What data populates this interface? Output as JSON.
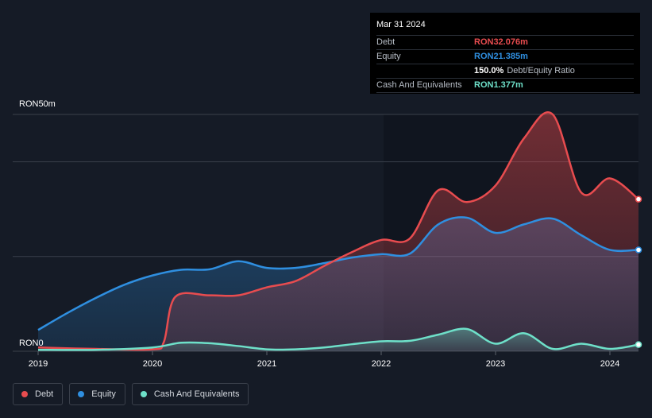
{
  "tooltip": {
    "date": "Mar 31 2024",
    "debt_label": "Debt",
    "debt_value": "RON32.076m",
    "equity_label": "Equity",
    "equity_value": "RON21.385m",
    "ratio_value": "150.0%",
    "ratio_label": "Debt/Equity Ratio",
    "cash_label": "Cash And Equivalents",
    "cash_value": "RON1.377m"
  },
  "colors": {
    "debt": "#e84c4f",
    "equity": "#2f8fe0",
    "cash": "#6ee0c9",
    "background": "#151b26"
  },
  "legend": {
    "debt": "Debt",
    "equity": "Equity",
    "cash": "Cash And Equivalents"
  },
  "chart_data": {
    "type": "area",
    "title": "",
    "ylabel_top": "RON50m",
    "ylabel_bottom": "RON0",
    "ylim": [
      0,
      50
    ],
    "xlim": [
      2019.0,
      2024.25
    ],
    "x_ticks": [
      "2019",
      "2020",
      "2021",
      "2022",
      "2023",
      "2024"
    ],
    "gridlines_y": [
      0,
      20,
      40,
      50
    ],
    "series": [
      {
        "name": "Debt",
        "points": [
          [
            2019.0,
            0.8
          ],
          [
            2019.5,
            0.5
          ],
          [
            2020.0,
            0.4
          ],
          [
            2020.1,
            2
          ],
          [
            2020.2,
            11.5
          ],
          [
            2020.5,
            11.8
          ],
          [
            2020.75,
            11.8
          ],
          [
            2021.0,
            13.5
          ],
          [
            2021.25,
            14.8
          ],
          [
            2021.5,
            18
          ],
          [
            2021.75,
            21
          ],
          [
            2022.0,
            23.5
          ],
          [
            2022.25,
            23.8
          ],
          [
            2022.5,
            34
          ],
          [
            2022.75,
            31.5
          ],
          [
            2023.0,
            35
          ],
          [
            2023.25,
            45
          ],
          [
            2023.5,
            50
          ],
          [
            2023.75,
            33.5
          ],
          [
            2024.0,
            36.5
          ],
          [
            2024.25,
            32.1
          ]
        ]
      },
      {
        "name": "Equity",
        "points": [
          [
            2019.0,
            4.5
          ],
          [
            2019.25,
            8
          ],
          [
            2019.5,
            11.2
          ],
          [
            2019.75,
            14
          ],
          [
            2020.0,
            16
          ],
          [
            2020.25,
            17.2
          ],
          [
            2020.5,
            17.3
          ],
          [
            2020.75,
            19
          ],
          [
            2021.0,
            17.6
          ],
          [
            2021.25,
            17.6
          ],
          [
            2021.5,
            18.6
          ],
          [
            2021.75,
            19.8
          ],
          [
            2022.0,
            20.5
          ],
          [
            2022.25,
            20.6
          ],
          [
            2022.5,
            26.8
          ],
          [
            2022.75,
            28.2
          ],
          [
            2023.0,
            25
          ],
          [
            2023.25,
            26.8
          ],
          [
            2023.5,
            28
          ],
          [
            2023.75,
            24.5
          ],
          [
            2024.0,
            21.4
          ],
          [
            2024.25,
            21.4
          ]
        ]
      },
      {
        "name": "Cash And Equivalents",
        "points": [
          [
            2019.0,
            0.3
          ],
          [
            2019.5,
            0.3
          ],
          [
            2020.0,
            0.8
          ],
          [
            2020.25,
            1.8
          ],
          [
            2020.5,
            1.7
          ],
          [
            2020.75,
            1.1
          ],
          [
            2021.0,
            0.4
          ],
          [
            2021.25,
            0.4
          ],
          [
            2021.5,
            0.8
          ],
          [
            2021.75,
            1.5
          ],
          [
            2022.0,
            2.1
          ],
          [
            2022.25,
            2.2
          ],
          [
            2022.5,
            3.5
          ],
          [
            2022.75,
            4.7
          ],
          [
            2023.0,
            1.6
          ],
          [
            2023.25,
            3.8
          ],
          [
            2023.5,
            0.5
          ],
          [
            2023.75,
            1.6
          ],
          [
            2024.0,
            0.5
          ],
          [
            2024.25,
            1.4
          ]
        ]
      }
    ]
  }
}
